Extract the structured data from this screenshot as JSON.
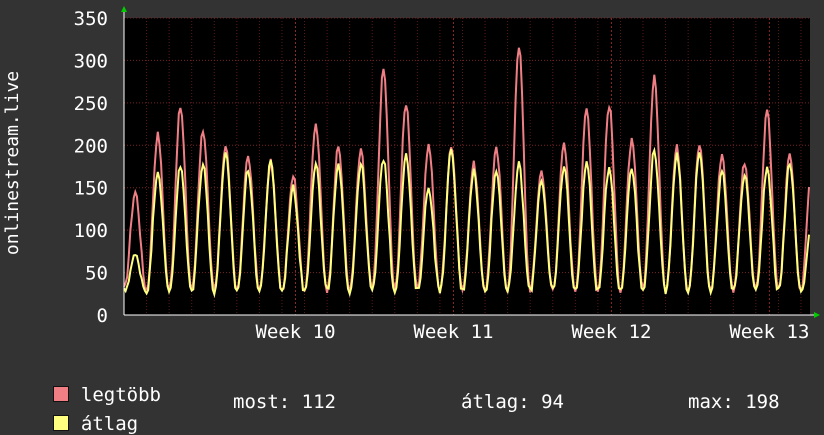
{
  "chart_data": {
    "type": "line",
    "ylabel": "onlinestream.live",
    "ylim": [
      0,
      350
    ],
    "yticks": [
      0,
      50,
      100,
      150,
      200,
      250,
      300,
      350
    ],
    "x_tick_labels": [
      "Week 10",
      "Week 11",
      "Week 12",
      "Week 13"
    ],
    "x_tick_positions_days": [
      7.6,
      14.6,
      21.6,
      28.6
    ],
    "x_range_days": [
      0,
      30.4
    ],
    "grid": true,
    "legend_placement": "bottom",
    "series": [
      {
        "name": "legtöbb",
        "color": "#f07f85",
        "daily_peaks": [
          145,
          213,
          245,
          219,
          200,
          188,
          180,
          165,
          224,
          198,
          193,
          290,
          250,
          200,
          200,
          178,
          195,
          318,
          170,
          200,
          243,
          248,
          205,
          280,
          198,
          200,
          190,
          178,
          240,
          190,
          185
        ],
        "daily_min": 30
      },
      {
        "name": "átlag",
        "color": "#ffff80",
        "daily_peaks": [
          70,
          170,
          175,
          180,
          190,
          172,
          180,
          150,
          180,
          175,
          178,
          185,
          188,
          150,
          193,
          170,
          170,
          178,
          160,
          175,
          180,
          175,
          175,
          195,
          190,
          190,
          170,
          165,
          175,
          180,
          110
        ],
        "daily_min": 28
      }
    ]
  },
  "legend": {
    "items": [
      {
        "label": "legtöbb",
        "color": "#f07f85"
      },
      {
        "label": "átlag",
        "color": "#ffff80"
      }
    ],
    "stats": {
      "now": "most: 112",
      "avg": "átlag: 94",
      "max": "max: 198"
    }
  }
}
